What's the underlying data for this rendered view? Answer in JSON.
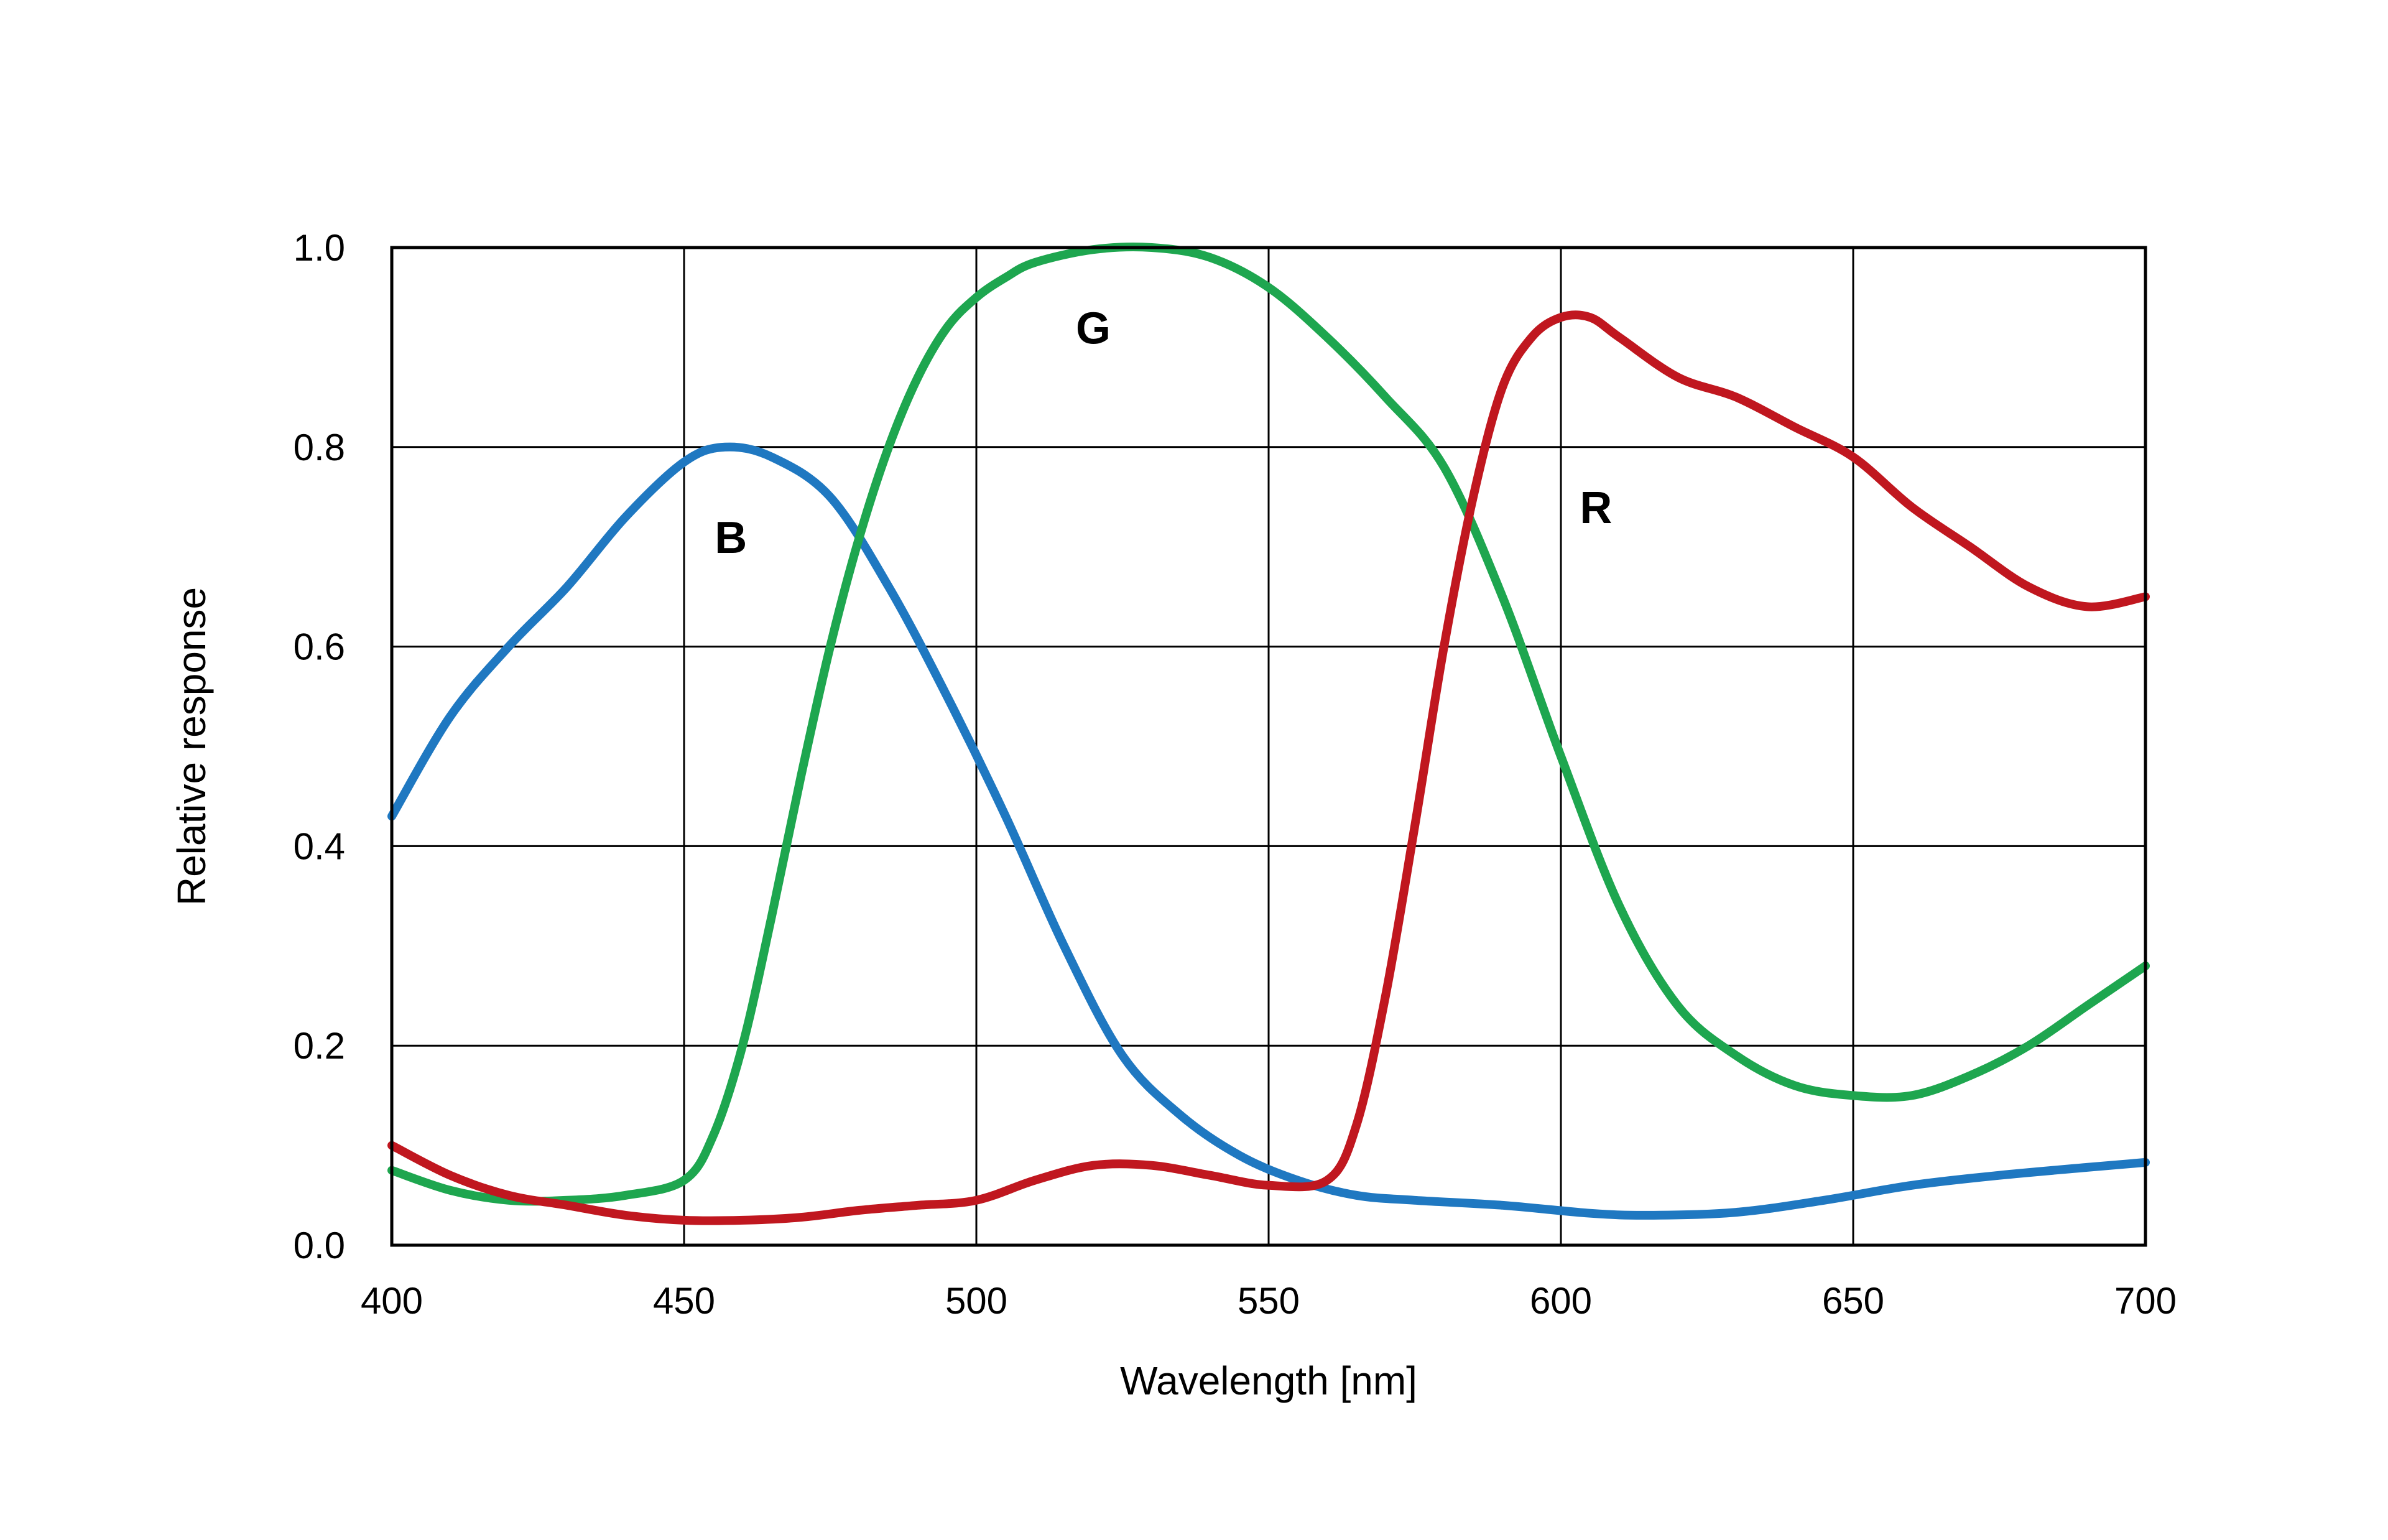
{
  "chart_data": {
    "type": "line",
    "xlabel": "Wavelength [nm]",
    "ylabel": "Relative response",
    "xlim": [
      400,
      700
    ],
    "ylim": [
      0,
      1.0
    ],
    "xticks": [
      400,
      450,
      500,
      550,
      600,
      650,
      700
    ],
    "yticks": [
      0.0,
      0.2,
      0.4,
      0.6,
      0.8,
      1.0
    ],
    "x_tick_labels": [
      "400",
      "450",
      "500",
      "550",
      "600",
      "650",
      "700"
    ],
    "y_tick_labels": [
      "0.0",
      "0.2",
      "0.4",
      "0.6",
      "0.8",
      "1.0"
    ],
    "grid": true,
    "series": [
      {
        "name": "B",
        "color": "#1f78c1",
        "label_at": [
          458,
          0.71
        ],
        "x": [
          400,
          410,
          420,
          430,
          440,
          450,
          457,
          465,
          475,
          485,
          495,
          505,
          515,
          525,
          535,
          545,
          555,
          565,
          575,
          590,
          605,
          615,
          630,
          645,
          660,
          675,
          690,
          700
        ],
        "y": [
          0.43,
          0.53,
          0.6,
          0.66,
          0.73,
          0.785,
          0.8,
          0.79,
          0.75,
          0.66,
          0.55,
          0.43,
          0.3,
          0.19,
          0.13,
          0.09,
          0.065,
          0.05,
          0.045,
          0.04,
          0.032,
          0.03,
          0.033,
          0.045,
          0.06,
          0.07,
          0.078,
          0.083
        ]
      },
      {
        "name": "G",
        "color": "#1ea64f",
        "label_at": [
          520,
          0.92
        ],
        "x": [
          400,
          410,
          420,
          430,
          440,
          450,
          455,
          460,
          465,
          470,
          475,
          480,
          485,
          490,
          495,
          500,
          505,
          510,
          520,
          530,
          540,
          550,
          560,
          570,
          580,
          590,
          600,
          610,
          620,
          630,
          640,
          650,
          660,
          670,
          680,
          690,
          700
        ],
        "y": [
          0.075,
          0.055,
          0.045,
          0.045,
          0.05,
          0.065,
          0.11,
          0.2,
          0.33,
          0.47,
          0.6,
          0.71,
          0.8,
          0.87,
          0.92,
          0.95,
          0.97,
          0.985,
          0.998,
          1.0,
          0.99,
          0.96,
          0.91,
          0.85,
          0.78,
          0.65,
          0.49,
          0.34,
          0.24,
          0.19,
          0.16,
          0.15,
          0.15,
          0.17,
          0.2,
          0.24,
          0.28
        ]
      },
      {
        "name": "R",
        "color": "#c0171f",
        "label_at": [
          606,
          0.74
        ],
        "x": [
          400,
          410,
          420,
          430,
          440,
          450,
          460,
          470,
          480,
          490,
          500,
          510,
          520,
          530,
          540,
          550,
          560,
          565,
          570,
          575,
          580,
          585,
          590,
          595,
          600,
          605,
          610,
          620,
          630,
          640,
          650,
          660,
          670,
          680,
          690,
          700
        ],
        "y": [
          0.1,
          0.07,
          0.05,
          0.04,
          0.03,
          0.025,
          0.025,
          0.028,
          0.035,
          0.04,
          0.045,
          0.065,
          0.08,
          0.08,
          0.07,
          0.06,
          0.065,
          0.12,
          0.25,
          0.42,
          0.6,
          0.75,
          0.86,
          0.91,
          0.93,
          0.93,
          0.91,
          0.87,
          0.85,
          0.82,
          0.79,
          0.74,
          0.7,
          0.66,
          0.64,
          0.65
        ]
      }
    ]
  }
}
